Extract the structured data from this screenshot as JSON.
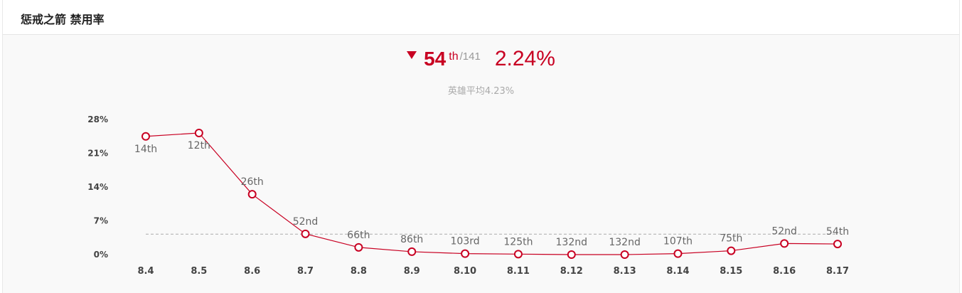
{
  "header": {
    "title": "惩戒之箭 禁用率"
  },
  "summary": {
    "rank": "54",
    "rank_suffix": "th",
    "rank_total": "/141",
    "rate": "2.24%",
    "average": "英雄平均4.23%"
  },
  "colors": {
    "accent": "#c80022",
    "average_line": "#aaaaaa"
  },
  "chart_data": {
    "type": "line",
    "title": "",
    "xlabel": "",
    "ylabel": "",
    "categories": [
      "8.4",
      "8.5",
      "8.6",
      "8.7",
      "8.8",
      "8.9",
      "8.10",
      "8.11",
      "8.12",
      "8.13",
      "8.14",
      "8.15",
      "8.16",
      "8.17"
    ],
    "series": [
      {
        "values": [
          24.5,
          25.2,
          12.5,
          4.3,
          1.5,
          0.6,
          0.2,
          0.1,
          0.0,
          0.0,
          0.2,
          0.8,
          2.3,
          2.2
        ],
        "labels": [
          "14th",
          "12th",
          "26th",
          "52nd",
          "66th",
          "86th",
          "103rd",
          "125th",
          "132nd",
          "132nd",
          "107th",
          "75th",
          "52nd",
          "54th"
        ]
      }
    ],
    "average_line": 4.23,
    "ylim": [
      0,
      28
    ],
    "yticks": [
      0,
      7,
      14,
      21,
      28
    ],
    "ytick_labels": [
      "0%",
      "7%",
      "14%",
      "21%",
      "28%"
    ],
    "grid": false
  }
}
